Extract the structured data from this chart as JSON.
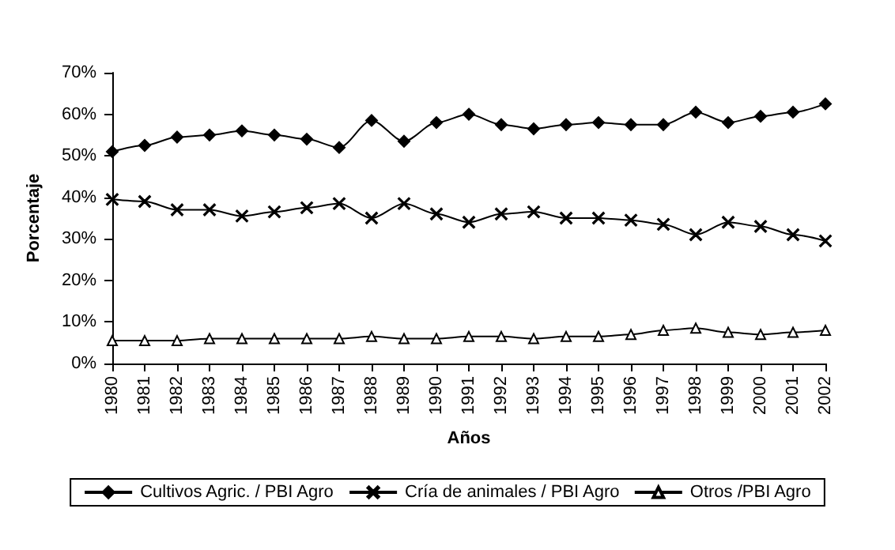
{
  "chart_data": {
    "type": "line",
    "xlabel": "Años",
    "ylabel": "Porcentaje",
    "categories": [
      "1980",
      "1981",
      "1982",
      "1983",
      "1984",
      "1985",
      "1986",
      "1987",
      "1988",
      "1989",
      "1990",
      "1991",
      "1992",
      "1993",
      "1994",
      "1995",
      "1996",
      "1997",
      "1998",
      "1999",
      "2000",
      "2001",
      "2002"
    ],
    "series": [
      {
        "name": "Cultivos Agric. / PBI Agro",
        "color": "#000000",
        "marker": "diamond",
        "values": [
          51,
          52.5,
          54.5,
          55,
          56,
          55,
          54,
          52,
          58.5,
          53.5,
          58,
          60,
          57.5,
          56.5,
          57.5,
          58,
          57.5,
          57.5,
          60.5,
          58,
          59.5,
          60.5,
          62.5
        ]
      },
      {
        "name": "Cría de animales / PBI Agro",
        "color": "#000000",
        "marker": "cross",
        "values": [
          39.5,
          39,
          37,
          37,
          35.5,
          36.5,
          37.5,
          38.5,
          35,
          38.5,
          36,
          34,
          36,
          36.5,
          35,
          35,
          34.5,
          33.5,
          31,
          34,
          33,
          31,
          29.5
        ]
      },
      {
        "name": "Otros /PBI Agro",
        "color": "#000000",
        "marker": "triangle",
        "values": [
          5.5,
          5.5,
          5.5,
          6,
          6,
          6,
          6,
          6,
          6.5,
          6,
          6,
          6.5,
          6.5,
          6,
          6.5,
          6.5,
          7,
          8,
          8.5,
          7.5,
          7,
          7.5,
          8
        ]
      }
    ],
    "ylim": [
      0,
      70
    ],
    "yticks": [
      {
        "value": 0,
        "label": "0%"
      },
      {
        "value": 10,
        "label": "10%"
      },
      {
        "value": 20,
        "label": "20%"
      },
      {
        "value": 30,
        "label": "30%"
      },
      {
        "value": 40,
        "label": "40%"
      },
      {
        "value": 50,
        "label": "50%"
      },
      {
        "value": 60,
        "label": "60%"
      },
      {
        "value": 70,
        "label": "70%"
      }
    ],
    "grid": false,
    "legend": "bottom",
    "line_style": "solid"
  }
}
